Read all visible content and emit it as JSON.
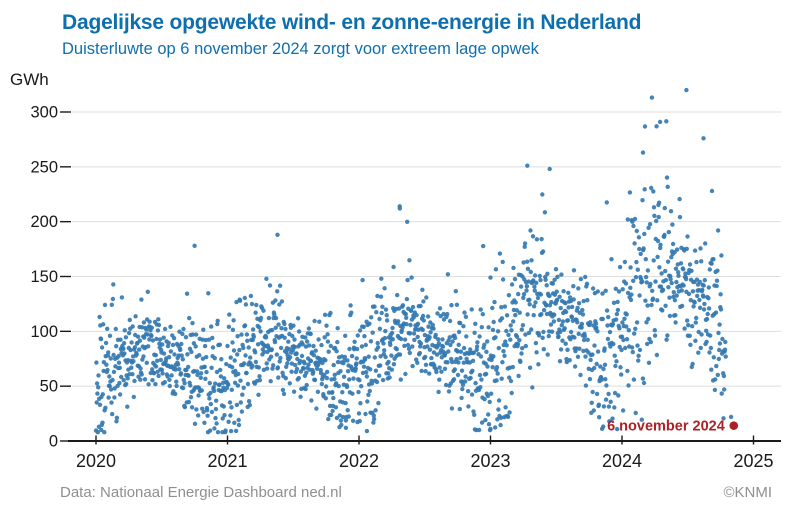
{
  "footer": {
    "source": "Data: Nationaal Energie Dashboard ned.nl",
    "credit": "©KNMI",
    "color": "#8f8f8f"
  },
  "chart_data": {
    "type": "scatter",
    "title": "Dagelijkse opgewekte wind- en zonne-energie in Nederland",
    "subtitle": "Duisterluwte op 6 november 2024 zorgt voor extreem lage opwek",
    "title_color": "#0e6fad",
    "ylabel": "GWh",
    "xlabel": "",
    "legend": "none",
    "grid": "horizontal",
    "xticks": [
      2020,
      2021,
      2022,
      2023,
      2024,
      2025
    ],
    "yticks": [
      0,
      50,
      100,
      150,
      200,
      250,
      300
    ],
    "xlim": [
      2019.82,
      2025.21
    ],
    "ylim": [
      0,
      330
    ],
    "n_points": 1770,
    "point_color": "#3579b1",
    "point_radius": 2.2,
    "axis_color": "#1a1a1a",
    "grid_color": "#dedede",
    "series_description": "Daily combined wind + solar electricity generation in the Netherlands (GWh), 1 Jan 2020 - early Nov 2024; rising trend from ~10-190 GWh range in 2020 to ~15-320 GWh in 2024",
    "highlight": {
      "x": 2024.85,
      "value": 14,
      "label": "6 november 2024",
      "color": "#ad2025",
      "radius": 4.3
    },
    "notable_points": [
      [
        2024.49,
        320
      ],
      [
        2024.29,
        291
      ],
      [
        2024.62,
        276
      ],
      [
        2024.16,
        263
      ],
      [
        2023.28,
        251
      ],
      [
        2023.45,
        248
      ],
      [
        2022.31,
        212
      ],
      [
        2021.38,
        188
      ],
      [
        2020.75,
        178
      ],
      [
        2022.06,
        9
      ],
      [
        2021.9,
        12
      ],
      [
        2023.0,
        11
      ],
      [
        2020.04,
        10
      ],
      [
        2024.83,
        22
      ]
    ],
    "gen": {
      "seed": 13,
      "seasonal_mean_2020": [
        58,
        66,
        74,
        82,
        85,
        80,
        74,
        70,
        64,
        60,
        52,
        54
      ],
      "seasonal_spread": [
        38,
        36,
        34,
        30,
        28,
        26,
        25,
        25,
        28,
        33,
        38,
        38
      ],
      "seasonal_floor": [
        8,
        10,
        18,
        30,
        35,
        38,
        36,
        33,
        24,
        14,
        8,
        8
      ],
      "year_scale": {
        "2020": 1.0,
        "2021": 1.06,
        "2022": 1.2,
        "2023": 1.5,
        "2024": 1.78
      },
      "year_max": {
        "2020": 192,
        "2021": 196,
        "2022": 214,
        "2023": 252,
        "2024": 322
      },
      "storm_prob": 0.09,
      "storm_boost": 72,
      "low_dip_prob": 0.08,
      "end_day_2024": 289,
      "late_2024_damp_after": 276,
      "late_damp": 0.65
    }
  }
}
